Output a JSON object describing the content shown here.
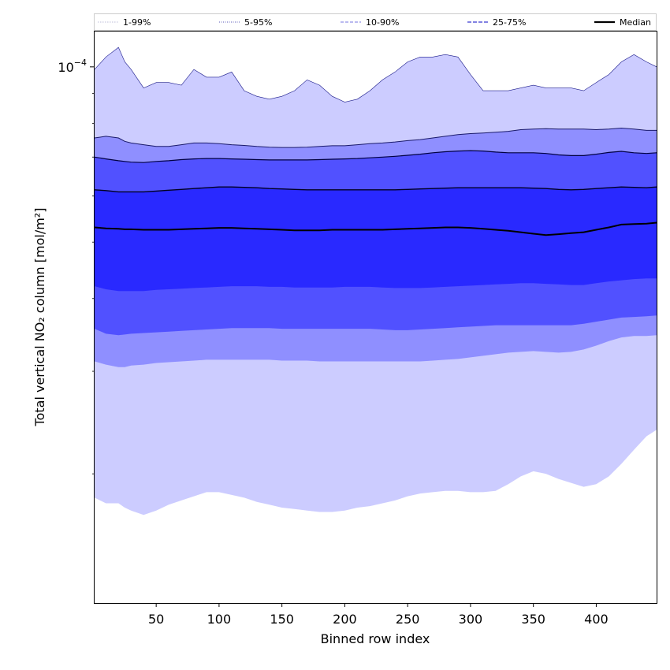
{
  "chart_data": {
    "type": "area",
    "title": "",
    "xlabel": "Binned row index",
    "ylabel": "Total vertical NO₂ column [mol/m²]",
    "x_range": [
      1,
      448
    ],
    "x_ticks": [
      50,
      100,
      150,
      200,
      250,
      300,
      350,
      400
    ],
    "y_scale": "log",
    "ylim": [
      1.2e-05,
      0.000115
    ],
    "y_tick_labels": [
      {
        "value": 0.0001,
        "mantissa": "10",
        "exponent": "−4"
      }
    ],
    "y_minor_ticks": [
      2e-05,
      3e-05,
      4e-05,
      5e-05,
      6e-05,
      7e-05,
      8e-05,
      9e-05
    ],
    "legend_position": "top, spanning plot width",
    "legend": [
      {
        "key": "p1_99",
        "label": "1-99%"
      },
      {
        "key": "p5_95",
        "label": "5-95%"
      },
      {
        "key": "p10_90",
        "label": "10-90%"
      },
      {
        "key": "p25_75",
        "label": "25-75%"
      },
      {
        "key": "median",
        "label": "Median"
      }
    ],
    "colors": {
      "band_1_99": "#ccccff",
      "band_5_95": "#8f8fff",
      "band_10_90": "#5151ff",
      "band_25_75": "#2929ff",
      "line_1_99": "#bdbdd9",
      "line_5_95": "#5858b8",
      "line_10_90": "#9090e8",
      "line_25_75": "#5a5ad8",
      "median": "#000000"
    },
    "x": [
      1,
      10,
      20,
      25,
      30,
      40,
      50,
      60,
      70,
      80,
      90,
      100,
      110,
      120,
      130,
      140,
      150,
      160,
      170,
      180,
      190,
      200,
      210,
      220,
      230,
      240,
      250,
      260,
      270,
      280,
      290,
      300,
      310,
      320,
      330,
      340,
      350,
      360,
      370,
      380,
      390,
      400,
      410,
      420,
      430,
      440,
      448
    ],
    "series": [
      {
        "key": "p99",
        "values": [
          9.9e-05,
          0.000104,
          0.000108,
          0.000102,
          9.9e-05,
          9.2e-05,
          9.4e-05,
          9.4e-05,
          9.3e-05,
          9.9e-05,
          9.6e-05,
          9.6e-05,
          9.8e-05,
          9.1e-05,
          8.9e-05,
          8.8e-05,
          8.9e-05,
          9.1e-05,
          9.5e-05,
          9.3e-05,
          8.9e-05,
          8.7e-05,
          8.8e-05,
          9.1e-05,
          9.5e-05,
          9.8e-05,
          0.000102,
          0.000104,
          0.000104,
          0.000105,
          0.000104,
          9.7e-05,
          9.1e-05,
          9.1e-05,
          9.1e-05,
          9.2e-05,
          9.3e-05,
          9.2e-05,
          9.2e-05,
          9.2e-05,
          9.1e-05,
          9.4e-05,
          9.7e-05,
          0.000102,
          0.000105,
          0.000102,
          0.0001
        ]
      },
      {
        "key": "p95",
        "values": [
          7.55e-05,
          7.6e-05,
          7.55e-05,
          7.45e-05,
          7.4e-05,
          7.35e-05,
          7.3e-05,
          7.3e-05,
          7.35e-05,
          7.4e-05,
          7.4e-05,
          7.38e-05,
          7.35e-05,
          7.33e-05,
          7.3e-05,
          7.28e-05,
          7.27e-05,
          7.27e-05,
          7.28e-05,
          7.3e-05,
          7.32e-05,
          7.32e-05,
          7.35e-05,
          7.38e-05,
          7.4e-05,
          7.43e-05,
          7.47e-05,
          7.5e-05,
          7.55e-05,
          7.6e-05,
          7.65e-05,
          7.68e-05,
          7.7e-05,
          7.72e-05,
          7.75e-05,
          7.8e-05,
          7.82e-05,
          7.83e-05,
          7.82e-05,
          7.82e-05,
          7.82e-05,
          7.8e-05,
          7.82e-05,
          7.85e-05,
          7.82e-05,
          7.78e-05,
          7.78e-05
        ]
      },
      {
        "key": "p90",
        "values": [
          7e-05,
          6.95e-05,
          6.9e-05,
          6.88e-05,
          6.86e-05,
          6.85e-05,
          6.88e-05,
          6.9e-05,
          6.93e-05,
          6.95e-05,
          6.96e-05,
          6.96e-05,
          6.95e-05,
          6.94e-05,
          6.93e-05,
          6.92e-05,
          6.92e-05,
          6.92e-05,
          6.92e-05,
          6.93e-05,
          6.94e-05,
          6.95e-05,
          6.96e-05,
          6.98e-05,
          7e-05,
          7.02e-05,
          7.05e-05,
          7.08e-05,
          7.12e-05,
          7.15e-05,
          7.17e-05,
          7.18e-05,
          7.17e-05,
          7.14e-05,
          7.12e-05,
          7.12e-05,
          7.12e-05,
          7.1e-05,
          7.06e-05,
          7.04e-05,
          7.04e-05,
          7.08e-05,
          7.13e-05,
          7.16e-05,
          7.12e-05,
          7.1e-05,
          7.12e-05
        ]
      },
      {
        "key": "p75",
        "values": [
          6.15e-05,
          6.13e-05,
          6.1e-05,
          6.1e-05,
          6.1e-05,
          6.1e-05,
          6.12e-05,
          6.14e-05,
          6.16e-05,
          6.18e-05,
          6.2e-05,
          6.22e-05,
          6.22e-05,
          6.21e-05,
          6.2e-05,
          6.18e-05,
          6.17e-05,
          6.16e-05,
          6.15e-05,
          6.15e-05,
          6.15e-05,
          6.15e-05,
          6.15e-05,
          6.15e-05,
          6.15e-05,
          6.15e-05,
          6.16e-05,
          6.17e-05,
          6.18e-05,
          6.19e-05,
          6.2e-05,
          6.2e-05,
          6.2e-05,
          6.2e-05,
          6.2e-05,
          6.2e-05,
          6.19e-05,
          6.18e-05,
          6.16e-05,
          6.15e-05,
          6.16e-05,
          6.18e-05,
          6.2e-05,
          6.22e-05,
          6.21e-05,
          6.2e-05,
          6.22e-05
        ]
      },
      {
        "key": "median",
        "values": [
          5.3e-05,
          5.28e-05,
          5.27e-05,
          5.26e-05,
          5.26e-05,
          5.25e-05,
          5.25e-05,
          5.25e-05,
          5.26e-05,
          5.27e-05,
          5.28e-05,
          5.29e-05,
          5.29e-05,
          5.28e-05,
          5.27e-05,
          5.26e-05,
          5.25e-05,
          5.24e-05,
          5.24e-05,
          5.24e-05,
          5.25e-05,
          5.25e-05,
          5.25e-05,
          5.25e-05,
          5.25e-05,
          5.26e-05,
          5.27e-05,
          5.28e-05,
          5.29e-05,
          5.3e-05,
          5.3e-05,
          5.29e-05,
          5.27e-05,
          5.25e-05,
          5.23e-05,
          5.2e-05,
          5.17e-05,
          5.14e-05,
          5.16e-05,
          5.18e-05,
          5.2e-05,
          5.25e-05,
          5.3e-05,
          5.36e-05,
          5.37e-05,
          5.38e-05,
          5.4e-05
        ]
      },
      {
        "key": "p25",
        "values": [
          4.2e-05,
          4.15e-05,
          4.12e-05,
          4.12e-05,
          4.12e-05,
          4.12e-05,
          4.14e-05,
          4.15e-05,
          4.16e-05,
          4.17e-05,
          4.18e-05,
          4.19e-05,
          4.2e-05,
          4.2e-05,
          4.2e-05,
          4.19e-05,
          4.19e-05,
          4.18e-05,
          4.18e-05,
          4.18e-05,
          4.18e-05,
          4.19e-05,
          4.19e-05,
          4.19e-05,
          4.18e-05,
          4.17e-05,
          4.17e-05,
          4.17e-05,
          4.18e-05,
          4.19e-05,
          4.2e-05,
          4.21e-05,
          4.22e-05,
          4.23e-05,
          4.24e-05,
          4.25e-05,
          4.25e-05,
          4.24e-05,
          4.23e-05,
          4.22e-05,
          4.22e-05,
          4.25e-05,
          4.28e-05,
          4.3e-05,
          4.32e-05,
          4.33e-05,
          4.33e-05
        ]
      },
      {
        "key": "p10",
        "values": [
          3.55e-05,
          3.48e-05,
          3.46e-05,
          3.47e-05,
          3.48e-05,
          3.49e-05,
          3.5e-05,
          3.51e-05,
          3.52e-05,
          3.53e-05,
          3.54e-05,
          3.55e-05,
          3.56e-05,
          3.56e-05,
          3.56e-05,
          3.56e-05,
          3.55e-05,
          3.55e-05,
          3.55e-05,
          3.55e-05,
          3.55e-05,
          3.55e-05,
          3.55e-05,
          3.55e-05,
          3.54e-05,
          3.53e-05,
          3.53e-05,
          3.54e-05,
          3.55e-05,
          3.56e-05,
          3.57e-05,
          3.58e-05,
          3.59e-05,
          3.6e-05,
          3.6e-05,
          3.6e-05,
          3.6e-05,
          3.6e-05,
          3.6e-05,
          3.6e-05,
          3.62e-05,
          3.65e-05,
          3.68e-05,
          3.71e-05,
          3.72e-05,
          3.73e-05,
          3.74e-05
        ]
      },
      {
        "key": "p5",
        "values": [
          3.12e-05,
          3.08e-05,
          3.05e-05,
          3.05e-05,
          3.07e-05,
          3.08e-05,
          3.1e-05,
          3.11e-05,
          3.12e-05,
          3.13e-05,
          3.14e-05,
          3.14e-05,
          3.14e-05,
          3.14e-05,
          3.14e-05,
          3.14e-05,
          3.13e-05,
          3.13e-05,
          3.13e-05,
          3.12e-05,
          3.12e-05,
          3.12e-05,
          3.12e-05,
          3.12e-05,
          3.12e-05,
          3.12e-05,
          3.12e-05,
          3.12e-05,
          3.13e-05,
          3.14e-05,
          3.15e-05,
          3.17e-05,
          3.19e-05,
          3.21e-05,
          3.23e-05,
          3.24e-05,
          3.25e-05,
          3.24e-05,
          3.23e-05,
          3.24e-05,
          3.27e-05,
          3.32e-05,
          3.38e-05,
          3.43e-05,
          3.45e-05,
          3.45e-05,
          3.46e-05
        ]
      },
      {
        "key": "p1",
        "values": [
          1.82e-05,
          1.78e-05,
          1.78e-05,
          1.75e-05,
          1.73e-05,
          1.7e-05,
          1.73e-05,
          1.77e-05,
          1.8e-05,
          1.83e-05,
          1.86e-05,
          1.86e-05,
          1.84e-05,
          1.82e-05,
          1.79e-05,
          1.77e-05,
          1.75e-05,
          1.74e-05,
          1.73e-05,
          1.72e-05,
          1.72e-05,
          1.73e-05,
          1.75e-05,
          1.76e-05,
          1.78e-05,
          1.8e-05,
          1.83e-05,
          1.85e-05,
          1.86e-05,
          1.87e-05,
          1.87e-05,
          1.86e-05,
          1.86e-05,
          1.87e-05,
          1.92e-05,
          1.98e-05,
          2.02e-05,
          2e-05,
          1.96e-05,
          1.93e-05,
          1.9e-05,
          1.92e-05,
          1.98e-05,
          2.08e-05,
          2.2e-05,
          2.32e-05,
          2.38e-05
        ]
      }
    ]
  }
}
